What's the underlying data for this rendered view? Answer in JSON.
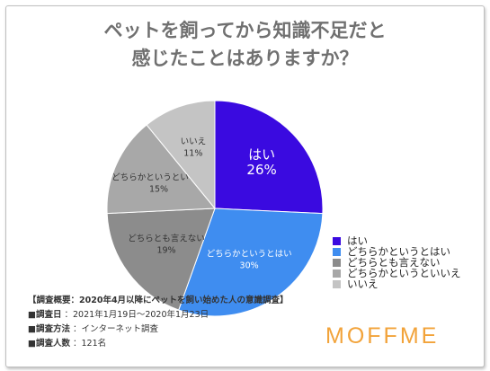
{
  "chart_data": {
    "type": "pie",
    "title_lines": [
      "ペットを飼ってから知識不足だと",
      "感じたことはありますか？"
    ],
    "slices": [
      {
        "name": "はい",
        "value": 26,
        "label": "26%",
        "color": "#3a0ae0"
      },
      {
        "name": "どちらかというとはい",
        "value": 30,
        "label": "30%",
        "color": "#3f8df0"
      },
      {
        "name": "どちらとも言えない",
        "value": 19,
        "label": "19%",
        "color": "#8c8c8c"
      },
      {
        "name": "どちらかというといいえ",
        "value": 15,
        "label": "15%",
        "color": "#a8a8a8"
      },
      {
        "name": "いいえ",
        "value": 11,
        "label": "11%",
        "color": "#c4c4c4"
      }
    ],
    "legend_position": "right"
  },
  "survey": {
    "overview": "【調査概要：2020年4月以降にペットを飼い始めた人の意識調査】",
    "rows": [
      {
        "label": "■調査日",
        "value": "：2021年1月19日〜2020年1月23日"
      },
      {
        "label": "■調査方法",
        "value": "：インターネット調査"
      },
      {
        "label": "■調査人数",
        "value": "：121名"
      }
    ]
  },
  "logo": "MOFFME"
}
